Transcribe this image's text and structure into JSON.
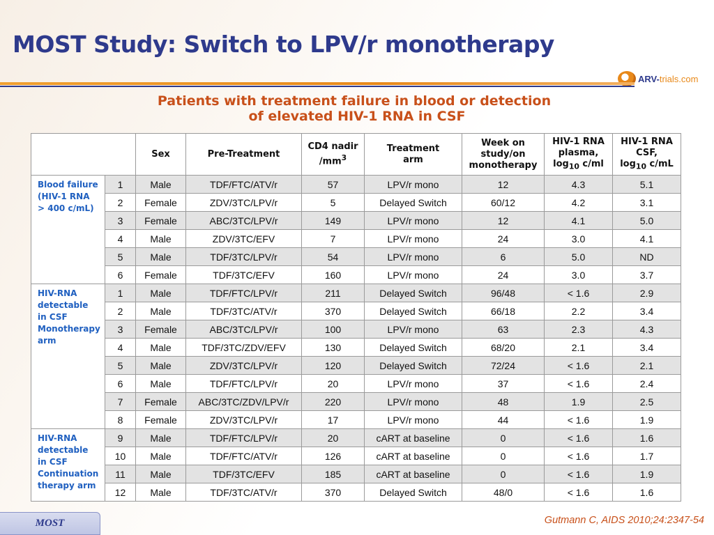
{
  "title": "MOST Study: Switch to LPV/r monotherapy",
  "logo": {
    "main": "ARV-",
    "accent": "trials",
    "suffix": ".com"
  },
  "subtitle": {
    "line1": "Patients with treatment failure in blood or detection",
    "line2": "of elevated HIV-1 RNA in CSF"
  },
  "table": {
    "headers": {
      "sex": "Sex",
      "pretreatment": "Pre-Treatment",
      "cd4_main": "CD4 nadir",
      "cd4_unit": "/mm",
      "cd4_sup": "3",
      "arm_l1": "Treatment",
      "arm_l2": "arm",
      "week_l1": "Week on",
      "week_l2": "study/on",
      "week_l3": "monotherapy",
      "plasma_l1": "HIV-1 RNA",
      "plasma_l2": "plasma,",
      "plasma_l3a": "log",
      "plasma_sub": "10",
      "plasma_l3b": " c/ml",
      "csf_l1": "HIV-1 RNA",
      "csf_l2": "CSF,",
      "csf_l3a": "log",
      "csf_sub": "10",
      "csf_l3b": " c/mL"
    },
    "groups": [
      {
        "lines": [
          "Blood failure",
          "(HIV-1 RNA",
          "> 400 c/mL)"
        ]
      },
      {
        "lines": [
          "HIV-RNA",
          "detectable",
          "in CSF",
          "Monotherapy",
          "arm"
        ]
      },
      {
        "lines": [
          "HIV-RNA",
          "detectable",
          "in CSF",
          "Continuation",
          "therapy arm"
        ]
      }
    ],
    "rows": [
      [
        "1",
        "Male",
        "TDF/FTC/ATV/r",
        "57",
        "LPV/r mono",
        "12",
        "4.3",
        "5.1"
      ],
      [
        "2",
        "Female",
        "ZDV/3TC/LPV/r",
        "5",
        "Delayed Switch",
        "60/12",
        "4.2",
        "3.1"
      ],
      [
        "3",
        "Female",
        "ABC/3TC/LPV/r",
        "149",
        "LPV/r mono",
        "12",
        "4.1",
        "5.0"
      ],
      [
        "4",
        "Male",
        "ZDV/3TC/EFV",
        "7",
        "LPV/r mono",
        "24",
        "3.0",
        "4.1"
      ],
      [
        "5",
        "Male",
        "TDF/3TC/LPV/r",
        "54",
        "LPV/r mono",
        "6",
        "5.0",
        "ND"
      ],
      [
        "6",
        "Female",
        "TDF/3TC/EFV",
        "160",
        "LPV/r mono",
        "24",
        "3.0",
        "3.7"
      ],
      [
        "1",
        "Male",
        "TDF/FTC/LPV/r",
        "211",
        "Delayed Switch",
        "96/48",
        "< 1.6",
        "2.9"
      ],
      [
        "2",
        "Male",
        "TDF/3TC/ATV/r",
        "370",
        "Delayed Switch",
        "66/18",
        "2.2",
        "3.4"
      ],
      [
        "3",
        "Female",
        "ABC/3TC/LPV/r",
        "100",
        "LPV/r mono",
        "63",
        "2.3",
        "4.3"
      ],
      [
        "4",
        "Male",
        "TDF/3TC/ZDV/EFV",
        "130",
        "Delayed Switch",
        "68/20",
        "2.1",
        "3.4"
      ],
      [
        "5",
        "Male",
        "ZDV/3TC/LPV/r",
        "120",
        "Delayed Switch",
        "72/24",
        "< 1.6",
        "2.1"
      ],
      [
        "6",
        "Male",
        "TDF/FTC/LPV/r",
        "20",
        "LPV/r mono",
        "37",
        "< 1.6",
        "2.4"
      ],
      [
        "7",
        "Female",
        "ABC/3TC/ZDV/LPV/r",
        "220",
        "LPV/r mono",
        "48",
        "1.9",
        "2.5"
      ],
      [
        "8",
        "Female",
        "ZDV/3TC/LPV/r",
        "17",
        "LPV/r mono",
        "44",
        "< 1.6",
        "1.9"
      ],
      [
        "9",
        "Male",
        "TDF/FTC/LPV/r",
        "20",
        "cART at baseline",
        "0",
        "< 1.6",
        "1.6"
      ],
      [
        "10",
        "Male",
        "TDF/FTC/ATV/r",
        "126",
        "cART at baseline",
        "0",
        "< 1.6",
        "1.7"
      ],
      [
        "11",
        "Male",
        "TDF/3TC/EFV",
        "185",
        "cART at baseline",
        "0",
        "< 1.6",
        "1.9"
      ],
      [
        "12",
        "Male",
        "TDF/3TC/ATV/r",
        "370",
        "Delayed Switch",
        "48/0",
        "< 1.6",
        "1.6"
      ]
    ]
  },
  "footer": {
    "badge": "MOST",
    "citation": "Gutmann C, AIDS 2010;24:2347-54"
  }
}
